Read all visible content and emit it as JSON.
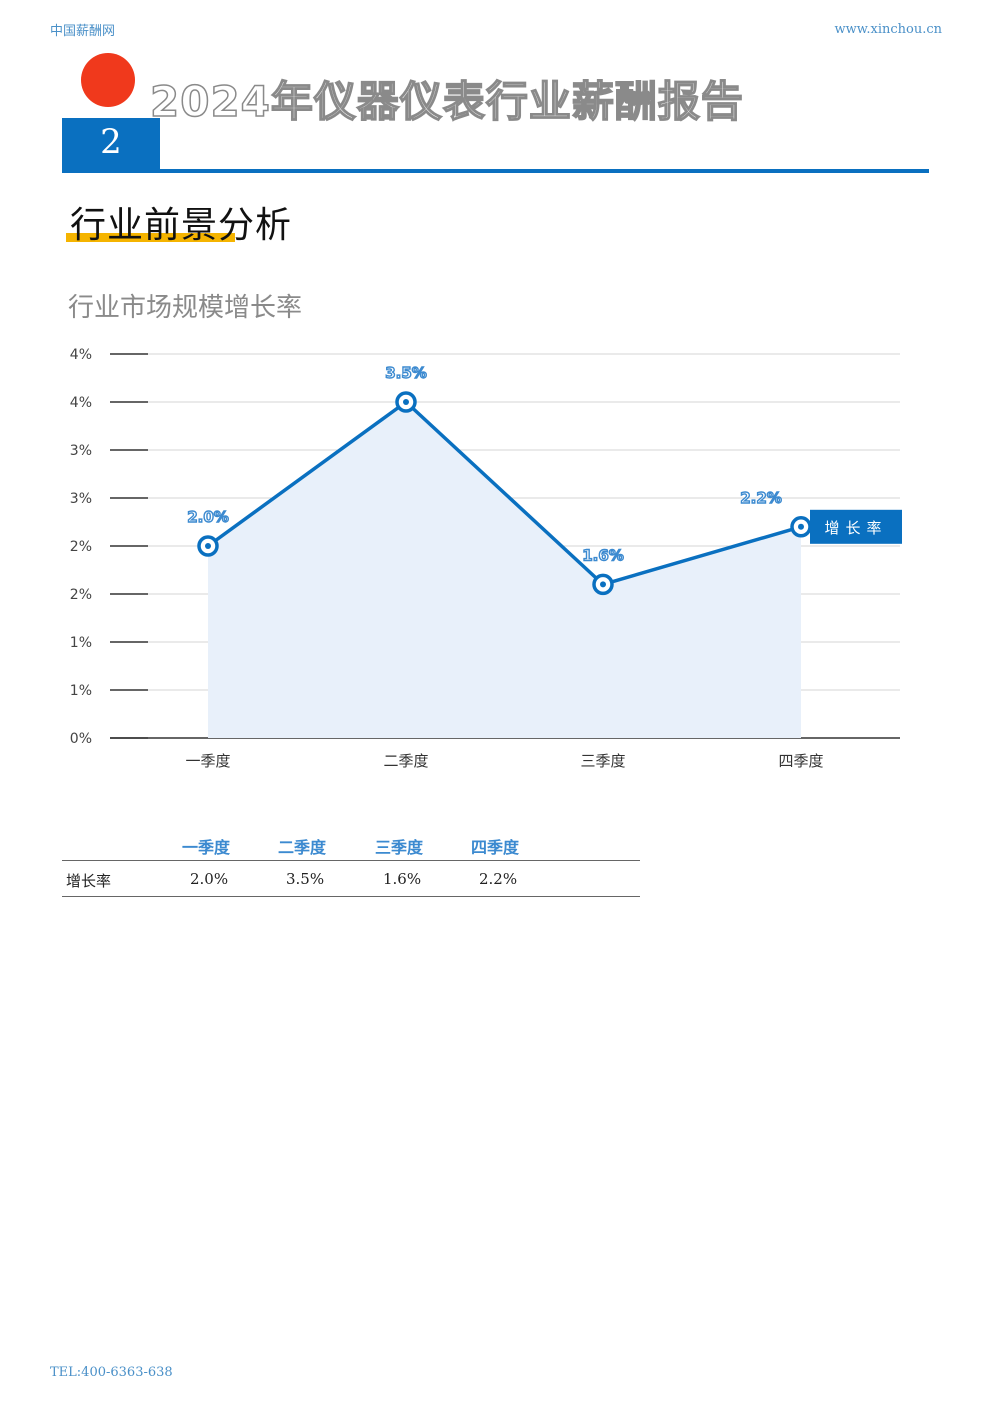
{
  "header": {
    "site_name": "中国薪酬网",
    "url": "www.xinchou.cn"
  },
  "report_title": "2024年仪器仪表行业薪酬报告",
  "chapter_number": "2",
  "section_title": "行业前景分析",
  "chart_title": "行业市场规模增长率",
  "chart_data": {
    "type": "area",
    "title": "行业市场规模增长率",
    "categories": [
      "一季度",
      "二季度",
      "三季度",
      "四季度"
    ],
    "series": [
      {
        "name": "增长率",
        "values": [
          2.0,
          3.5,
          1.6,
          2.2
        ],
        "labels": [
          "2.0%",
          "3.5%",
          "1.6%",
          "2.2%"
        ]
      }
    ],
    "y_tick_labels": [
      "0%",
      "1%",
      "1%",
      "2%",
      "2%",
      "3%",
      "3%",
      "4%",
      "4%"
    ],
    "ylim": [
      0,
      4.0
    ],
    "grid": true,
    "legend": "right",
    "colors": {
      "line": "#0a70c0",
      "fill": "#e8f0fa",
      "legend_bg": "#0a70c0"
    }
  },
  "table": {
    "headers": [
      "一季度",
      "二季度",
      "三季度",
      "四季度"
    ],
    "row_label": "增长率",
    "values": [
      "2.0%",
      "3.5%",
      "1.6%",
      "2.2%"
    ]
  },
  "footer": {
    "tel": "TEL:400-6363-638"
  }
}
